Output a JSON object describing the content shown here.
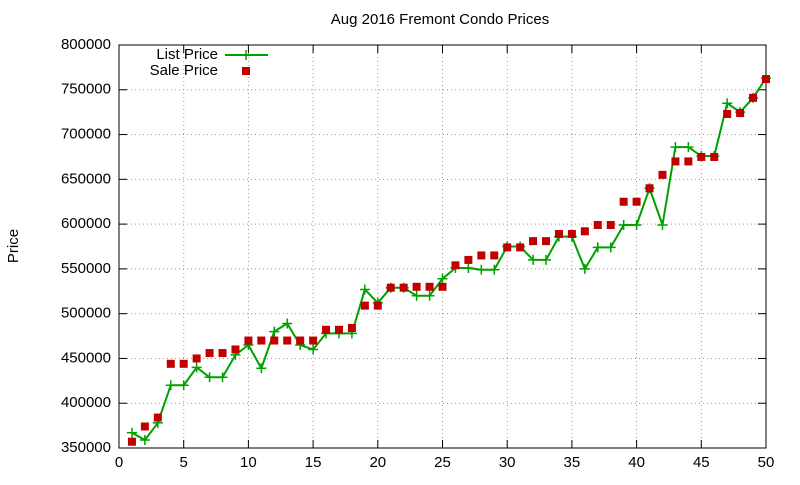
{
  "chart_data": {
    "type": "line",
    "title": "Aug 2016 Fremont Condo Prices",
    "ylabel": "Price",
    "x": [
      1,
      2,
      3,
      4,
      5,
      6,
      7,
      8,
      9,
      10,
      11,
      12,
      13,
      14,
      15,
      16,
      17,
      18,
      19,
      20,
      21,
      22,
      23,
      24,
      25,
      26,
      27,
      28,
      29,
      30,
      31,
      32,
      33,
      34,
      35,
      36,
      37,
      38,
      39,
      40,
      41,
      42,
      43,
      44,
      45,
      46,
      47,
      48,
      49,
      50
    ],
    "series": [
      {
        "name": "List Price",
        "color": "#00a000",
        "style": "lines+crosses",
        "values": [
          367000,
          359000,
          378000,
          420000,
          420000,
          440000,
          429000,
          429000,
          454000,
          465000,
          439000,
          480000,
          489000,
          465000,
          460000,
          478000,
          478000,
          478000,
          527000,
          512000,
          529000,
          529000,
          520000,
          520000,
          539000,
          551000,
          551000,
          549000,
          549000,
          575000,
          575000,
          560000,
          560000,
          586000,
          586000,
          550000,
          574000,
          574000,
          599000,
          599000,
          640000,
          599000,
          686000,
          686000,
          676000,
          676000,
          735000,
          725000,
          741000,
          763000
        ]
      },
      {
        "name": "Sale Price",
        "color": "#c00000",
        "style": "squares",
        "values": [
          357000,
          374000,
          384000,
          444000,
          444000,
          450000,
          456000,
          456000,
          460000,
          470000,
          470000,
          470000,
          470000,
          470000,
          470000,
          482000,
          482000,
          484000,
          509000,
          509000,
          529000,
          529000,
          530000,
          530000,
          530000,
          554000,
          560000,
          565000,
          565000,
          574000,
          574000,
          581000,
          581000,
          589000,
          589000,
          592000,
          599000,
          599000,
          625000,
          625000,
          640000,
          655000,
          670000,
          670000,
          675000,
          675000,
          723000,
          724000,
          741000,
          762000
        ]
      }
    ],
    "xlim": [
      0,
      50
    ],
    "xticks": [
      0,
      5,
      10,
      15,
      20,
      25,
      30,
      35,
      40,
      45,
      50
    ],
    "ylim": [
      350000,
      800000
    ],
    "yticks": [
      350000,
      400000,
      450000,
      500000,
      550000,
      600000,
      650000,
      700000,
      750000,
      800000
    ],
    "grid": true,
    "legend": "top-left"
  }
}
